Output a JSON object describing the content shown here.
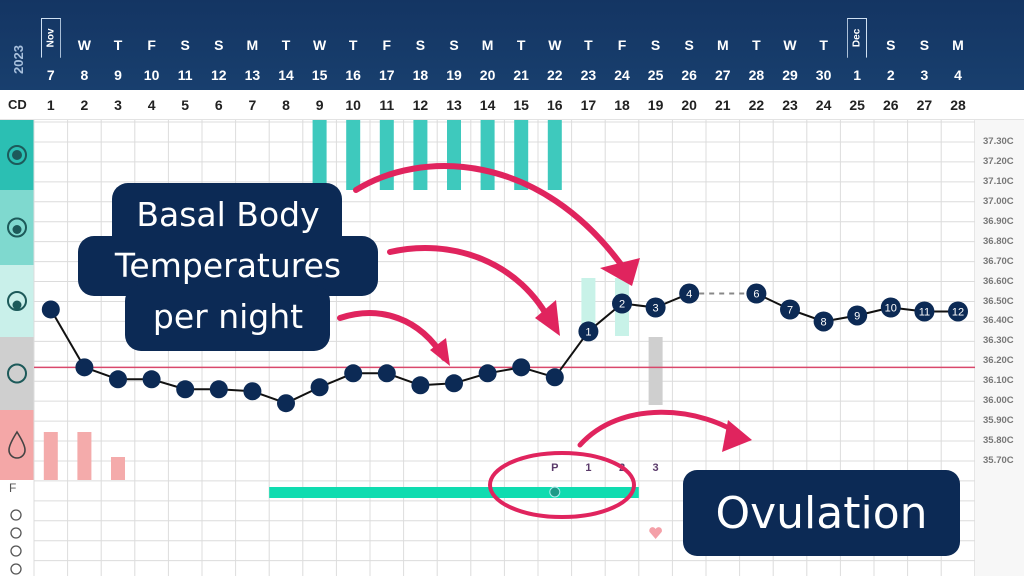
{
  "header": {
    "year": "2023",
    "month_markers": [
      {
        "label": "Nov",
        "cd": 1
      },
      {
        "label": "Dec",
        "cd": 25
      }
    ],
    "weekdays": [
      "",
      "W",
      "T",
      "F",
      "S",
      "S",
      "M",
      "T",
      "W",
      "T",
      "F",
      "S",
      "S",
      "M",
      "T",
      "W",
      "T",
      "F",
      "S",
      "S",
      "M",
      "T",
      "W",
      "T",
      "",
      "S",
      "S",
      "M"
    ],
    "dates": [
      "7",
      "8",
      "9",
      "10",
      "11",
      "12",
      "13",
      "14",
      "15",
      "16",
      "17",
      "18",
      "19",
      "20",
      "21",
      "22",
      "23",
      "24",
      "25",
      "26",
      "27",
      "28",
      "29",
      "30",
      "1",
      "2",
      "3",
      "4"
    ],
    "cd_label": "CD",
    "cycle_days": [
      "1",
      "2",
      "3",
      "4",
      "5",
      "6",
      "7",
      "8",
      "9",
      "10",
      "11",
      "12",
      "13",
      "14",
      "15",
      "16",
      "17",
      "18",
      "19",
      "20",
      "21",
      "22",
      "23",
      "24",
      "25",
      "26",
      "27",
      "28"
    ]
  },
  "left_panel": {
    "rows": [
      {
        "icon": "cervical-fluid-egg-white-icon",
        "color": "#2bbfb3"
      },
      {
        "icon": "cervical-fluid-watery-icon",
        "color": "#7fd9cf"
      },
      {
        "icon": "cervical-fluid-creamy-icon",
        "color": "#c9f0ea"
      },
      {
        "icon": "cervical-fluid-dry-icon",
        "color": "#cfcfcf"
      },
      {
        "icon": "menstruation-drop-icon",
        "color": "#f4a7a7"
      }
    ],
    "f_label": "F",
    "bottom_icons": [
      "notes-add-icon",
      "shield-heart-icon",
      "cervix-icon",
      "atom-icon"
    ]
  },
  "callouts": {
    "bbt_line1": "Basal Body",
    "bbt_line2": "Temperatures",
    "bbt_line3": "per night",
    "ovulation": "Ovulation"
  },
  "peak_labels": [
    "P",
    "1",
    "2",
    "3"
  ],
  "colors": {
    "accent": "#e0245e",
    "navy": "#0c2a55",
    "coverline": "#d9486b",
    "fertile_bar": "#10dcb0",
    "teal": "#3ec9bd"
  },
  "chart_data": {
    "type": "line",
    "title": "",
    "xlabel": "",
    "ylabel": "",
    "x": [
      1,
      2,
      3,
      4,
      5,
      6,
      7,
      8,
      9,
      10,
      11,
      12,
      13,
      14,
      15,
      16,
      17,
      18,
      19,
      20,
      21,
      22,
      23,
      24,
      25,
      26,
      27,
      28
    ],
    "temperatures": [
      36.46,
      36.17,
      36.11,
      36.11,
      36.06,
      36.06,
      36.05,
      35.99,
      36.07,
      36.14,
      36.14,
      36.08,
      36.09,
      36.14,
      36.17,
      36.12,
      36.35,
      36.49,
      36.47,
      36.54,
      null,
      36.54,
      36.46,
      36.4,
      36.43,
      36.47,
      36.45,
      36.45
    ],
    "high_temp_numbers": {
      "17": "1",
      "18": "2",
      "19": "3",
      "20": "4",
      "22": "6",
      "23": "7",
      "24": "8",
      "25": "9",
      "26": "10",
      "27": "11",
      "28": "12"
    },
    "coverline": 36.17,
    "ylim": [
      35.7,
      37.3
    ],
    "y_ticks": [
      "37.30C",
      "37.20C",
      "37.10C",
      "37.00C",
      "36.90C",
      "36.80C",
      "36.70C",
      "36.60C",
      "36.50C",
      "36.40C",
      "36.30C",
      "36.20C",
      "36.10C",
      "36.00C",
      "35.90C",
      "35.80C",
      "35.70C"
    ],
    "cervical_fluid": {
      "egg_white": [
        9,
        10,
        11,
        12,
        13,
        14,
        15,
        16
      ],
      "creamy": [
        17,
        18
      ],
      "dry": [
        19
      ]
    },
    "menstruation": {
      "1": "heavy",
      "2": "heavy",
      "3": "light"
    },
    "fertile_window_cd": [
      8,
      18
    ],
    "peak_day_cd": 16,
    "heart_cd": 19,
    "grid": true
  }
}
